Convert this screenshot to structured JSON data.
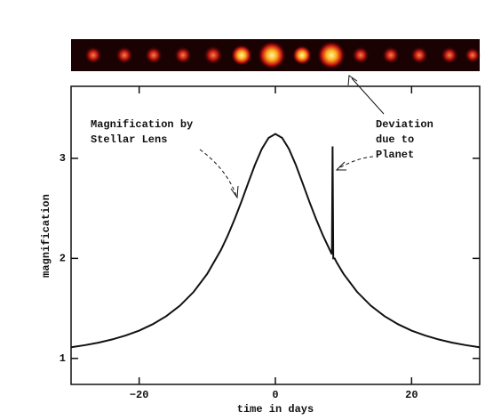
{
  "chart_data": {
    "type": "line",
    "x_label": "time in days",
    "y_label": "magnification",
    "annotations": [
      {
        "lines": [
          "Magnification by",
          "Stellar Lens"
        ]
      },
      {
        "lines": [
          "Deviation",
          "due to",
          "Planet"
        ]
      }
    ],
    "xlim": [
      -30,
      30
    ],
    "ylim": [
      0.74,
      3.72
    ],
    "xticks": [
      {
        "value": -20,
        "label": "−20"
      },
      0,
      20
    ],
    "yticks": [
      1,
      2,
      3
    ],
    "series": [
      {
        "color": "#111111",
        "x": [
          -30,
          -28,
          -26,
          -24,
          -22,
          -20,
          -18,
          -16,
          -14,
          -12,
          -10,
          -8,
          -7,
          -6,
          -5,
          -4,
          -3,
          -2,
          -1,
          0,
          1,
          2,
          3,
          4,
          5,
          6,
          7,
          8,
          8.3,
          8.4,
          8.5,
          8.7,
          9,
          10,
          12,
          14,
          16,
          18,
          20,
          22,
          24,
          26,
          28,
          30
        ],
        "values": [
          1.111,
          1.132,
          1.157,
          1.189,
          1.229,
          1.278,
          1.342,
          1.423,
          1.528,
          1.665,
          1.846,
          2.083,
          2.227,
          2.389,
          2.565,
          2.752,
          2.935,
          3.093,
          3.204,
          3.244,
          3.204,
          3.093,
          2.935,
          2.752,
          2.565,
          2.389,
          2.227,
          2.083,
          2.04,
          3.12,
          2.0,
          2.0,
          1.96,
          1.846,
          1.665,
          1.528,
          1.423,
          1.342,
          1.278,
          1.229,
          1.189,
          1.157,
          1.132,
          1.111
        ]
      }
    ]
  }
}
